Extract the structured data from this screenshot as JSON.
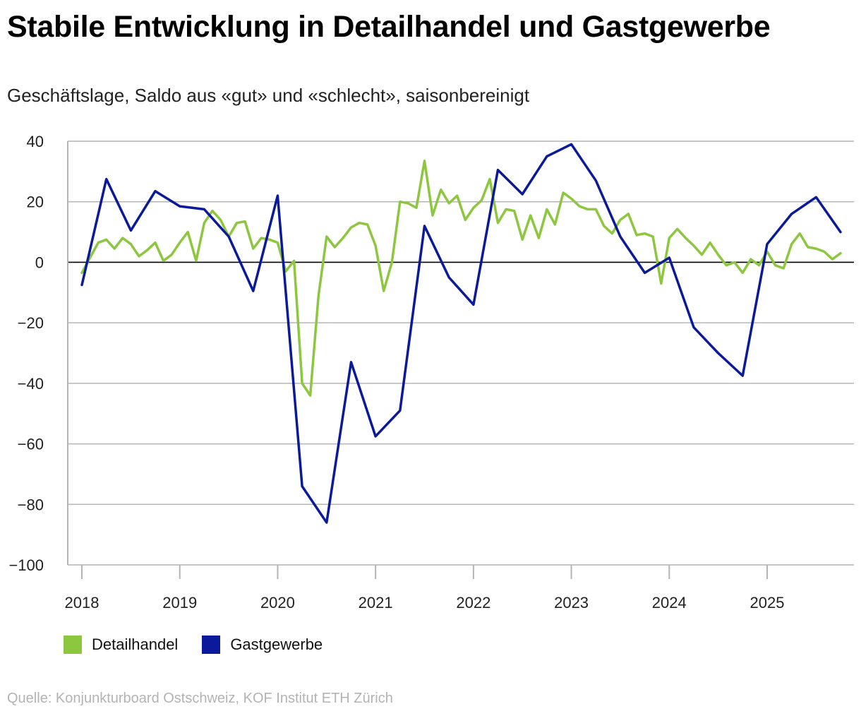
{
  "title": "Stabile Entwicklung in Detailhandel und Gastgewerbe",
  "subtitle": "Geschäftslage, Saldo aus «gut» und «schlecht», saisonbereinigt",
  "source": "Quelle: Konjunkturboard Ostschweiz, KOF Institut ETH Zürich",
  "colors": {
    "detailhandel": "#8dc63f",
    "gastgewerbe": "#0a1a9a",
    "grid": "#b4b4b4",
    "zero": "#000000"
  },
  "chart_data": {
    "type": "line",
    "title": "Stabile Entwicklung in Detailhandel und Gastgewerbe",
    "subtitle": "Geschäftslage, Saldo aus «gut» und «schlecht», saisonbereinigt",
    "xlabel": "",
    "ylabel": "",
    "ylim": [
      -100,
      40
    ],
    "xlim": [
      2017.85,
      2025.85
    ],
    "yticks": [
      40,
      20,
      0,
      -20,
      -40,
      -60,
      -80,
      -100
    ],
    "ytick_labels": [
      "40",
      "20",
      "0",
      "−20",
      "−40",
      "−60",
      "−80",
      "−100"
    ],
    "xticks": [
      2018,
      2019,
      2020,
      2021,
      2022,
      2023,
      2024,
      2025
    ],
    "xtick_labels": [
      "2018",
      "2019",
      "2020",
      "2021",
      "2022",
      "2023",
      "2024",
      "2025"
    ],
    "grid": true,
    "legend_position": "bottom-left",
    "series": [
      {
        "name": "Detailhandel",
        "color": "#8dc63f",
        "x": [
          2018.0,
          2018.083,
          2018.167,
          2018.25,
          2018.333,
          2018.417,
          2018.5,
          2018.583,
          2018.667,
          2018.75,
          2018.833,
          2018.917,
          2019.0,
          2019.083,
          2019.167,
          2019.25,
          2019.333,
          2019.417,
          2019.5,
          2019.583,
          2019.667,
          2019.75,
          2019.833,
          2019.917,
          2020.0,
          2020.083,
          2020.167,
          2020.25,
          2020.333,
          2020.417,
          2020.5,
          2020.583,
          2020.667,
          2020.75,
          2020.833,
          2020.917,
          2021.0,
          2021.083,
          2021.167,
          2021.25,
          2021.333,
          2021.417,
          2021.5,
          2021.583,
          2021.667,
          2021.75,
          2021.833,
          2021.917,
          2022.0,
          2022.083,
          2022.167,
          2022.25,
          2022.333,
          2022.417,
          2022.5,
          2022.583,
          2022.667,
          2022.75,
          2022.833,
          2022.917,
          2023.0,
          2023.083,
          2023.167,
          2023.25,
          2023.333,
          2023.417,
          2023.5,
          2023.583,
          2023.667,
          2023.75,
          2023.833,
          2023.917,
          2024.0,
          2024.083,
          2024.167,
          2024.25,
          2024.333,
          2024.417,
          2024.5,
          2024.583,
          2024.667,
          2024.75,
          2024.833,
          2024.917,
          2025.0,
          2025.083,
          2025.167,
          2025.25,
          2025.333,
          2025.417,
          2025.5,
          2025.583,
          2025.667,
          2025.75
        ],
        "values": [
          -3.5,
          1.5,
          6.5,
          7.5,
          4.5,
          8,
          6,
          2,
          4,
          6.5,
          0.5,
          2.5,
          6.5,
          10,
          0.5,
          13,
          17,
          14,
          8.5,
          13,
          13.5,
          4.5,
          8,
          7.5,
          6.5,
          -3,
          0.5,
          -40,
          -44,
          -11,
          8.5,
          5,
          8,
          11.5,
          13,
          12.5,
          5.5,
          -9.5,
          0,
          20,
          19.5,
          18,
          33.5,
          15.5,
          24,
          19.5,
          22,
          14,
          18,
          20.5,
          27.5,
          13,
          17.5,
          17,
          7.5,
          15.5,
          8,
          17.5,
          12.5,
          23,
          21,
          18.5,
          17.5,
          17.5,
          12,
          9.5,
          14,
          16,
          9,
          9.5,
          8.5,
          -7,
          8,
          11,
          8,
          5.5,
          2.5,
          6.5,
          2.5,
          -1,
          0,
          -3.5,
          1,
          -1,
          3.5,
          -1,
          -2,
          6,
          9.5,
          5,
          4.5,
          3.5,
          1,
          3
        ]
      },
      {
        "name": "Gastgewerbe",
        "color": "#0a1a9a",
        "x": [
          2018.0,
          2018.25,
          2018.5,
          2018.75,
          2019.0,
          2019.25,
          2019.5,
          2019.75,
          2020.0,
          2020.25,
          2020.5,
          2020.75,
          2021.0,
          2021.25,
          2021.5,
          2021.75,
          2022.0,
          2022.25,
          2022.5,
          2022.75,
          2023.0,
          2023.25,
          2023.5,
          2023.75,
          2024.0,
          2024.25,
          2024.5,
          2024.75,
          2025.0,
          2025.25,
          2025.5,
          2025.75
        ],
        "values": [
          -7.5,
          27.5,
          10.5,
          23.5,
          18.5,
          17.5,
          8.5,
          -9.5,
          22,
          -74,
          -86,
          -33,
          -57.5,
          -49,
          12,
          -5,
          -14,
          30.5,
          22.5,
          35,
          39,
          27,
          8.5,
          -3.5,
          1.5,
          -21.5,
          -30,
          -37.5,
          6,
          16,
          21.5,
          10
        ]
      }
    ]
  }
}
